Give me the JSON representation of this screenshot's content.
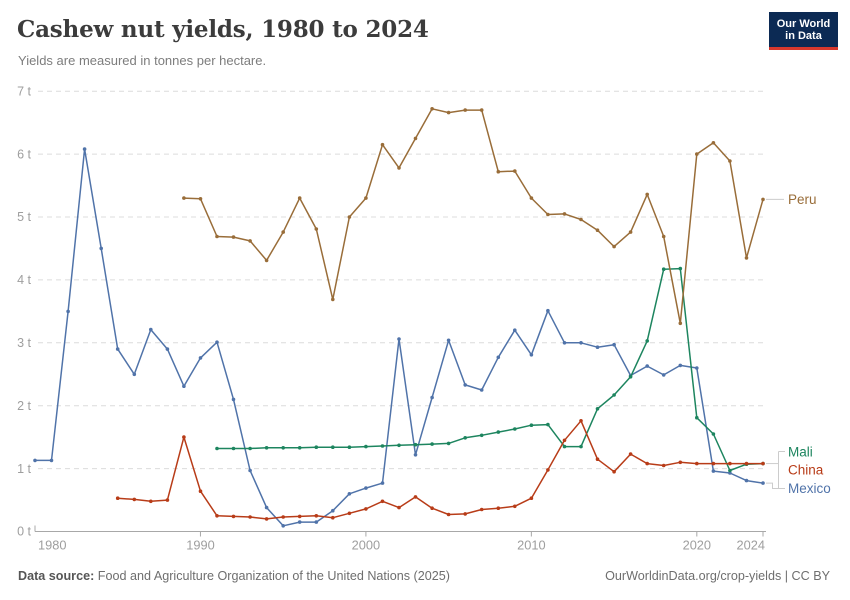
{
  "header": {
    "title": "Cashew nut yields, 1980 to 2024",
    "subtitle": "Yields are measured in tonnes per hectare.",
    "logo": {
      "line1": "Our World",
      "line2": "in Data",
      "bg_color": "#0c2a54",
      "bar_color": "#d7382d"
    }
  },
  "footer": {
    "source_label": "Data source:",
    "source_text": " Food and Agriculture Organization of the United Nations (2025)",
    "link_text": "OurWorldinData.org/crop-yields | CC BY"
  },
  "chart_data": {
    "type": "line",
    "title": "Cashew nut yields, 1980 to 2024",
    "ylabel": "tonnes per hectare",
    "unit": "t",
    "ylim": [
      0,
      7
    ],
    "xlim": [
      1980,
      2024
    ],
    "grid": "horizontal-dashed",
    "legend_position": "right-of-line-ends",
    "y_tick_labels": [
      "0 t",
      "1 t",
      "2 t",
      "3 t",
      "4 t",
      "5 t",
      "6 t",
      "7 t"
    ],
    "x_tick_labels": [
      "1980",
      "1990",
      "2000",
      "2010",
      "2020",
      "2024"
    ],
    "x_tick_years": [
      1980,
      1990,
      2000,
      2010,
      2020,
      2024
    ],
    "series": [
      {
        "name": "Peru",
        "color": "#996D39",
        "points": [
          [
            1989,
            5.3
          ],
          [
            1990,
            5.29
          ],
          [
            1991,
            4.69
          ],
          [
            1992,
            4.68
          ],
          [
            1993,
            4.62
          ],
          [
            1994,
            4.31
          ],
          [
            1995,
            4.76
          ],
          [
            1996,
            5.3
          ],
          [
            1997,
            4.81
          ],
          [
            1998,
            3.69
          ],
          [
            1999,
            5.0
          ],
          [
            2000,
            5.3
          ],
          [
            2001,
            6.15
          ],
          [
            2002,
            5.78
          ],
          [
            2003,
            6.25
          ],
          [
            2004,
            6.72
          ],
          [
            2005,
            6.66
          ],
          [
            2006,
            6.7
          ],
          [
            2007,
            6.7
          ],
          [
            2008,
            5.72
          ],
          [
            2009,
            5.73
          ],
          [
            2010,
            5.3
          ],
          [
            2011,
            5.04
          ],
          [
            2012,
            5.05
          ],
          [
            2013,
            4.96
          ],
          [
            2014,
            4.79
          ],
          [
            2015,
            4.53
          ],
          [
            2016,
            4.76
          ],
          [
            2017,
            5.36
          ],
          [
            2018,
            4.69
          ],
          [
            2019,
            3.31
          ],
          [
            2020,
            6.0
          ],
          [
            2021,
            6.18
          ],
          [
            2022,
            5.89
          ],
          [
            2023,
            4.35
          ],
          [
            2024,
            5.28
          ]
        ]
      },
      {
        "name": "Mali",
        "color": "#1D855F",
        "points": [
          [
            1991,
            1.32
          ],
          [
            1992,
            1.32
          ],
          [
            1993,
            1.32
          ],
          [
            1994,
            1.33
          ],
          [
            1995,
            1.33
          ],
          [
            1996,
            1.33
          ],
          [
            1997,
            1.34
          ],
          [
            1998,
            1.34
          ],
          [
            1999,
            1.34
          ],
          [
            2000,
            1.35
          ],
          [
            2001,
            1.36
          ],
          [
            2002,
            1.37
          ],
          [
            2003,
            1.38
          ],
          [
            2004,
            1.39
          ],
          [
            2005,
            1.4
          ],
          [
            2006,
            1.49
          ],
          [
            2007,
            1.53
          ],
          [
            2008,
            1.58
          ],
          [
            2009,
            1.63
          ],
          [
            2010,
            1.69
          ],
          [
            2011,
            1.7
          ],
          [
            2012,
            1.35
          ],
          [
            2013,
            1.35
          ],
          [
            2014,
            1.95
          ],
          [
            2015,
            2.17
          ],
          [
            2016,
            2.46
          ],
          [
            2017,
            3.03
          ],
          [
            2018,
            4.17
          ],
          [
            2019,
            4.18
          ],
          [
            2020,
            1.81
          ],
          [
            2021,
            1.55
          ],
          [
            2022,
            0.97
          ],
          [
            2023,
            1.07
          ],
          [
            2024,
            1.08
          ]
        ]
      },
      {
        "name": "China",
        "color": "#B83C18",
        "points": [
          [
            1985,
            0.53
          ],
          [
            1986,
            0.51
          ],
          [
            1987,
            0.48
          ],
          [
            1988,
            0.5
          ],
          [
            1989,
            1.5
          ],
          [
            1990,
            0.64
          ],
          [
            1991,
            0.25
          ],
          [
            1992,
            0.24
          ],
          [
            1993,
            0.23
          ],
          [
            1994,
            0.2
          ],
          [
            1995,
            0.23
          ],
          [
            1996,
            0.24
          ],
          [
            1997,
            0.25
          ],
          [
            1998,
            0.22
          ],
          [
            1999,
            0.29
          ],
          [
            2000,
            0.36
          ],
          [
            2001,
            0.48
          ],
          [
            2002,
            0.38
          ],
          [
            2003,
            0.55
          ],
          [
            2004,
            0.37
          ],
          [
            2005,
            0.27
          ],
          [
            2006,
            0.28
          ],
          [
            2007,
            0.35
          ],
          [
            2008,
            0.37
          ],
          [
            2009,
            0.4
          ],
          [
            2010,
            0.53
          ],
          [
            2011,
            0.98
          ],
          [
            2012,
            1.45
          ],
          [
            2013,
            1.76
          ],
          [
            2014,
            1.15
          ],
          [
            2015,
            0.95
          ],
          [
            2016,
            1.23
          ],
          [
            2017,
            1.08
          ],
          [
            2018,
            1.05
          ],
          [
            2019,
            1.1
          ],
          [
            2020,
            1.08
          ],
          [
            2021,
            1.08
          ],
          [
            2022,
            1.08
          ],
          [
            2023,
            1.08
          ],
          [
            2024,
            1.08
          ]
        ]
      },
      {
        "name": "Mexico",
        "color": "#5073A9",
        "points": [
          [
            1980,
            1.13
          ],
          [
            1981,
            1.13
          ],
          [
            1982,
            3.5
          ],
          [
            1983,
            6.08
          ],
          [
            1984,
            4.5
          ],
          [
            1985,
            2.9
          ],
          [
            1986,
            2.5
          ],
          [
            1987,
            3.21
          ],
          [
            1988,
            2.9
          ],
          [
            1989,
            2.31
          ],
          [
            1990,
            2.76
          ],
          [
            1991,
            3.01
          ],
          [
            1992,
            2.1
          ],
          [
            1993,
            0.97
          ],
          [
            1994,
            0.38
          ],
          [
            1995,
            0.09
          ],
          [
            1996,
            0.15
          ],
          [
            1997,
            0.15
          ],
          [
            1998,
            0.33
          ],
          [
            1999,
            0.6
          ],
          [
            2000,
            0.69
          ],
          [
            2001,
            0.77
          ],
          [
            2002,
            3.06
          ],
          [
            2003,
            1.22
          ],
          [
            2004,
            2.13
          ],
          [
            2005,
            3.04
          ],
          [
            2006,
            2.33
          ],
          [
            2007,
            2.25
          ],
          [
            2008,
            2.77
          ],
          [
            2009,
            3.2
          ],
          [
            2010,
            2.81
          ],
          [
            2011,
            3.51
          ],
          [
            2012,
            3.0
          ],
          [
            2013,
            3.0
          ],
          [
            2014,
            2.93
          ],
          [
            2015,
            2.97
          ],
          [
            2016,
            2.48
          ],
          [
            2017,
            2.63
          ],
          [
            2018,
            2.49
          ],
          [
            2019,
            2.64
          ],
          [
            2020,
            2.6
          ],
          [
            2021,
            0.96
          ],
          [
            2022,
            0.93
          ],
          [
            2023,
            0.81
          ],
          [
            2024,
            0.77
          ]
        ]
      }
    ]
  }
}
